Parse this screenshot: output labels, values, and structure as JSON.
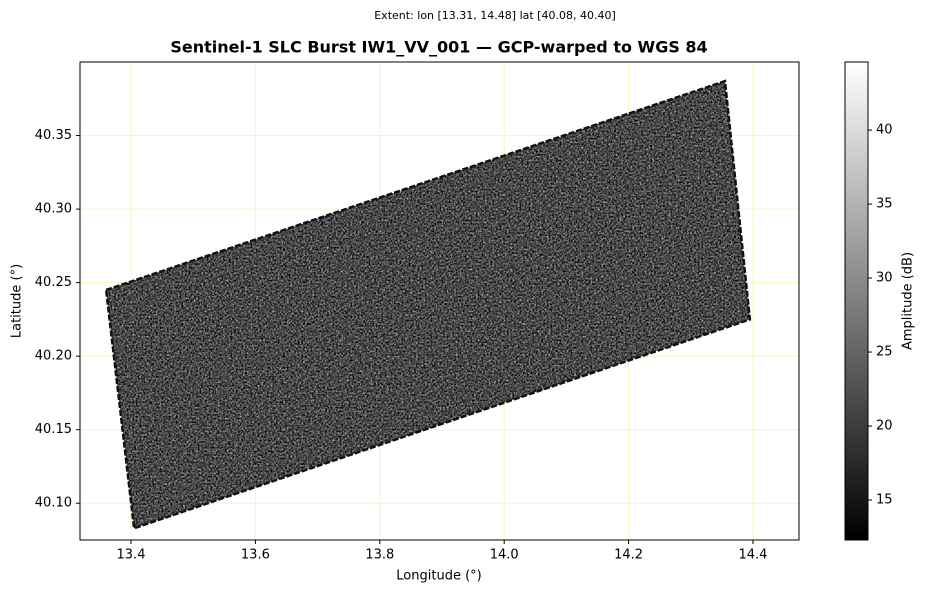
{
  "chart_data": {
    "type": "raster",
    "header": "Extent: lon [13.31, 14.48]  lat [40.08, 40.40]",
    "title": "Sentinel-1 SLC Burst IW1_VV_001 — GCP-warped to WGS 84",
    "x_label": "Longitude (°)",
    "y_label": "Latitude (°)",
    "xlim": [
      13.318,
      14.474
    ],
    "ylim": [
      40.075,
      40.4
    ],
    "xticks": [
      13.4,
      13.6,
      13.8,
      {
        "value": 14.0,
        "label": "14.0"
      },
      14.2,
      14.4
    ],
    "yticks": [
      {
        "value": 40.1,
        "label": "40.10"
      },
      40.15,
      {
        "value": 40.2,
        "label": "40.20"
      },
      40.25,
      {
        "value": 40.3,
        "label": "40.30"
      },
      40.35
    ],
    "grid": true,
    "grid_color": "#f4f7c0",
    "footprint": {
      "lon": [
        13.36,
        14.355,
        14.395,
        13.405
      ],
      "lat": [
        40.245,
        40.387,
        40.225,
        40.083
      ]
    },
    "colorbar": {
      "label": "Amplitude (dB)",
      "lim": [
        12.3,
        44.6
      ],
      "ticks": [
        15,
        20,
        25,
        30,
        35,
        40
      ],
      "colormap": [
        "#000000",
        "#ffffff"
      ]
    }
  }
}
